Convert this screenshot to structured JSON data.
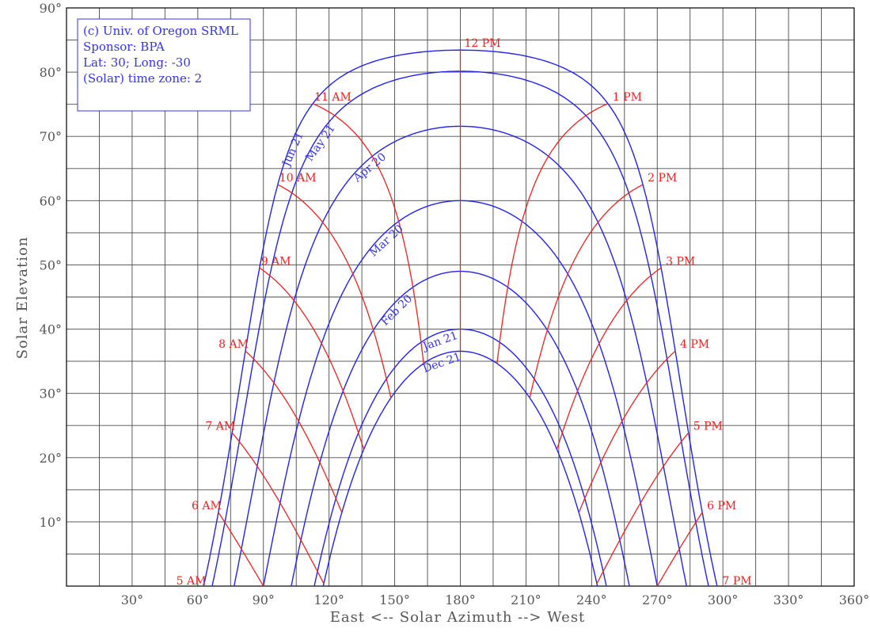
{
  "chart_data": {
    "type": "line",
    "title": "",
    "xlabel": "East <-- Solar Azimuth --> West",
    "ylabel": "Solar Elevation",
    "xlim": [
      0,
      360
    ],
    "ylim": [
      0,
      90
    ],
    "grid": true,
    "x_tick_labels": [
      "30°",
      "60°",
      "90°",
      "120°",
      "150°",
      "180°",
      "210°",
      "240°",
      "270°",
      "300°",
      "330°",
      "360°"
    ],
    "y_tick_labels": [
      "10°",
      "20°",
      "30°",
      "40°",
      "50°",
      "60°",
      "70°",
      "80°",
      "90°"
    ],
    "info_box": [
      "(c) Univ. of Oregon SRML",
      "Sponsor: BPA",
      "Lat: 30; Long: -30",
      "(Solar) time zone: 2"
    ],
    "latitude": 30,
    "date_series": [
      {
        "name": "Jun 21",
        "declination": 23.44,
        "show_label": true
      },
      {
        "name": "May 21",
        "declination": 20.14,
        "show_label": true
      },
      {
        "name": "Apr 20",
        "declination": 11.58,
        "show_label": true
      },
      {
        "name": "Mar 20",
        "declination": 0,
        "show_label": true
      },
      {
        "name": "Feb 20",
        "declination": -11.0,
        "show_label": true
      },
      {
        "name": "Jan 21",
        "declination": -20.0,
        "show_label": true
      },
      {
        "name": "Dec 21",
        "declination": -23.44,
        "show_label": true
      }
    ],
    "hour_series": [
      {
        "name": "5 AM",
        "hour": 5
      },
      {
        "name": "6 AM",
        "hour": 6
      },
      {
        "name": "7 AM",
        "hour": 7
      },
      {
        "name": "8 AM",
        "hour": 8
      },
      {
        "name": "9 AM",
        "hour": 9
      },
      {
        "name": "10 AM",
        "hour": 10
      },
      {
        "name": "11 AM",
        "hour": 11
      },
      {
        "name": "12 PM",
        "hour": 12
      },
      {
        "name": "1 PM",
        "hour": 13
      },
      {
        "name": "2 PM",
        "hour": 14
      },
      {
        "name": "3 PM",
        "hour": 15
      },
      {
        "name": "4 PM",
        "hour": 16
      },
      {
        "name": "5 PM",
        "hour": 17
      },
      {
        "name": "6 PM",
        "hour": 18
      },
      {
        "name": "7 PM",
        "hour": 19
      }
    ],
    "colors": {
      "date_curves": "#2222ee",
      "hour_curves": "#ee2020",
      "grid": "#4a4a4a",
      "text": "#555555"
    }
  }
}
